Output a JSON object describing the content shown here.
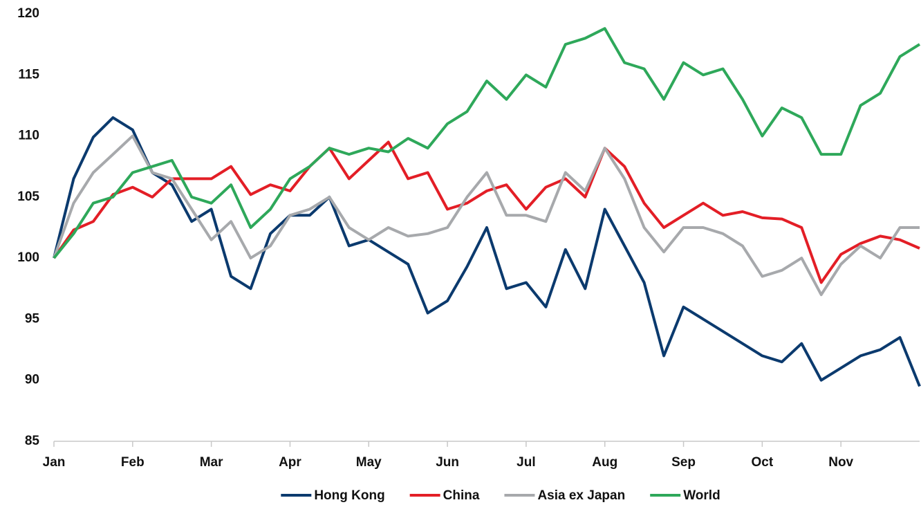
{
  "chart_data": {
    "type": "line",
    "categories": [
      "Jan",
      null,
      null,
      null,
      "Feb",
      null,
      null,
      null,
      "Mar",
      null,
      null,
      null,
      "Apr",
      null,
      null,
      null,
      "May",
      null,
      null,
      null,
      "Jun",
      null,
      null,
      null,
      "Jul",
      null,
      null,
      null,
      "Aug",
      null,
      null,
      null,
      "Sep",
      null,
      null,
      null,
      "Oct",
      null,
      null,
      null,
      "Nov",
      null,
      null,
      null,
      null
    ],
    "series": [
      {
        "name": "Hong Kong",
        "color": "#0b3a6e",
        "values": [
          100,
          106.5,
          109.9,
          111.5,
          110.5,
          107,
          106,
          103,
          104,
          98.5,
          97.5,
          102,
          103.5,
          103.5,
          105,
          101,
          101.5,
          100.5,
          99.5,
          95.5,
          96.5,
          99.3,
          102.5,
          97.5,
          98,
          96,
          100.7,
          97.5,
          104,
          101,
          98,
          92,
          96,
          95,
          94,
          93,
          92,
          91.5,
          93,
          90,
          91,
          92,
          92.5,
          93.5,
          89.5
        ]
      },
      {
        "name": "China",
        "color": "#e31e26",
        "values": [
          100,
          102.3,
          103,
          105.2,
          105.8,
          105,
          106.5,
          106.5,
          106.5,
          107.5,
          105.2,
          106,
          105.5,
          107.5,
          109,
          106.5,
          108,
          109.5,
          106.5,
          107,
          104,
          104.5,
          105.5,
          106,
          104,
          105.8,
          106.5,
          105,
          109,
          107.5,
          104.5,
          102.5,
          103.5,
          104.5,
          103.5,
          103.8,
          103.3,
          103.2,
          102.5,
          98,
          100.3,
          101.2,
          101.8,
          101.5,
          100.8
        ]
      },
      {
        "name": "Asia ex Japan",
        "color": "#a7a9ac",
        "values": [
          100,
          104.5,
          107,
          108.5,
          110,
          107,
          106.5,
          104,
          101.5,
          103,
          100,
          101,
          103.5,
          104,
          105,
          102.5,
          101.5,
          102.5,
          101.8,
          102,
          102.5,
          105,
          107,
          103.5,
          103.5,
          103,
          107,
          105.5,
          109,
          106.5,
          102.5,
          100.5,
          102.5,
          102.5,
          102,
          101,
          98.5,
          99,
          100,
          97,
          99.5,
          101,
          100,
          102.5,
          102.5
        ]
      },
      {
        "name": "World",
        "color": "#2ea85a",
        "values": [
          100,
          102,
          104.5,
          105,
          107,
          107.5,
          108,
          105,
          104.5,
          106,
          102.5,
          104,
          106.5,
          107.5,
          109,
          108.5,
          109,
          108.7,
          109.8,
          109,
          111,
          112,
          114.5,
          113,
          115,
          114,
          117.5,
          118,
          118.8,
          116,
          115.5,
          113,
          116,
          115,
          115.5,
          113,
          110,
          112.3,
          111.5,
          108.5,
          108.5,
          112.5,
          113.5,
          116.5,
          117.5
        ]
      }
    ],
    "ylim": [
      85,
      120
    ],
    "yticks": [
      85,
      90,
      95,
      100,
      105,
      110,
      115,
      120
    ],
    "legend": "bottom",
    "grid": false
  }
}
